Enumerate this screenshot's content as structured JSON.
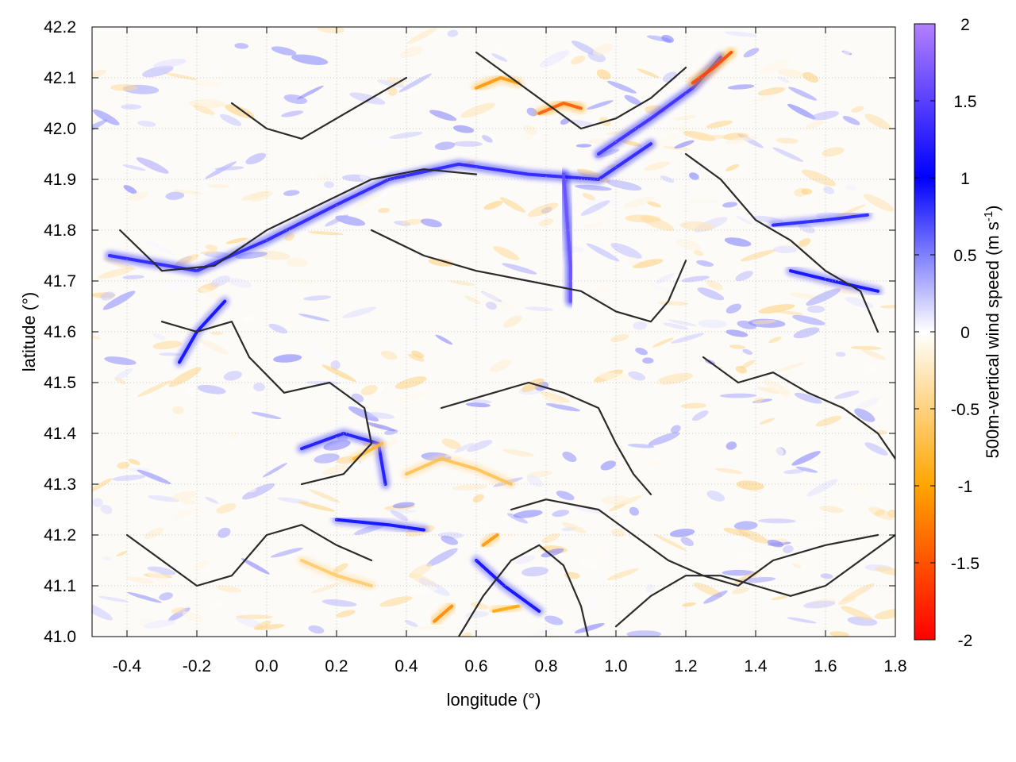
{
  "chart_data": {
    "type": "heatmap",
    "title": "",
    "xlabel": "longitude (°)",
    "ylabel": "latitude (°)",
    "xlim": [
      -0.5,
      1.8
    ],
    "ylim": [
      41.0,
      42.2
    ],
    "x_ticks": [
      "-0.4",
      "-0.2",
      "0.0",
      "0.2",
      "0.4",
      "0.6",
      "0.8",
      "1.0",
      "1.2",
      "1.4",
      "1.6",
      "1.8"
    ],
    "y_ticks": [
      "41.0",
      "41.1",
      "41.2",
      "41.3",
      "41.4",
      "41.5",
      "41.6",
      "41.7",
      "41.8",
      "41.9",
      "42.0",
      "42.1",
      "42.2"
    ],
    "grid": true,
    "colorbar": {
      "label_main": "500m-vertical wind speed (m s",
      "label_sup": "-1",
      "label_close": ")",
      "range": [
        -2,
        2
      ],
      "ticks": [
        "2",
        "1.5",
        "1",
        "0.5",
        "0",
        "-0.5",
        "-1",
        "-1.5",
        "-2"
      ],
      "colors": {
        "-2": "#ff0000",
        "-1": "#ffa500",
        "0": "#ffffff",
        "1": "#0000ff",
        "2": "#b380ff"
      }
    },
    "features": [
      {
        "kind": "updraft",
        "lon": [
          -0.45,
          -0.2,
          0.0,
          0.2,
          0.35,
          0.55,
          0.75,
          0.95,
          1.1
        ],
        "lat": [
          41.75,
          41.72,
          41.78,
          41.85,
          41.9,
          41.93,
          41.91,
          41.9,
          41.97
        ],
        "value": 1.2
      },
      {
        "kind": "updraft",
        "lon": [
          0.85,
          0.86,
          0.87,
          0.87
        ],
        "lat": [
          41.91,
          41.82,
          41.73,
          41.66
        ],
        "value": 1.6
      },
      {
        "kind": "updraft",
        "lon": [
          0.95,
          1.1,
          1.22,
          1.3
        ],
        "lat": [
          41.95,
          42.02,
          42.08,
          42.14
        ],
        "value": 1.3
      },
      {
        "kind": "updraft",
        "lon": [
          -0.25,
          -0.2,
          -0.12
        ],
        "lat": [
          41.54,
          41.6,
          41.66
        ],
        "value": 1.0
      },
      {
        "kind": "updraft",
        "lon": [
          0.1,
          0.22,
          0.32,
          0.34
        ],
        "lat": [
          41.37,
          41.4,
          41.38,
          41.3
        ],
        "value": 1.1
      },
      {
        "kind": "updraft",
        "lon": [
          0.2,
          0.35,
          0.45
        ],
        "lat": [
          41.23,
          41.22,
          41.21
        ],
        "value": 1.0
      },
      {
        "kind": "updraft",
        "lon": [
          1.5,
          1.62,
          1.75
        ],
        "lat": [
          41.72,
          41.7,
          41.68
        ],
        "value": 1.0
      },
      {
        "kind": "updraft",
        "lon": [
          1.45,
          1.6,
          1.72
        ],
        "lat": [
          41.81,
          41.82,
          41.83
        ],
        "value": 0.9
      },
      {
        "kind": "updraft",
        "lon": [
          0.6,
          0.68,
          0.78
        ],
        "lat": [
          41.15,
          41.1,
          41.05
        ],
        "value": 1.0
      },
      {
        "kind": "downdraft",
        "lon": [
          1.22,
          1.28,
          1.33
        ],
        "lat": [
          42.09,
          42.12,
          42.15
        ],
        "value": -1.6
      },
      {
        "kind": "downdraft",
        "lon": [
          0.78,
          0.85,
          0.9
        ],
        "lat": [
          42.03,
          42.05,
          42.04
        ],
        "value": -1.5
      },
      {
        "kind": "downdraft",
        "lon": [
          0.6,
          0.67,
          0.72
        ],
        "lat": [
          42.08,
          42.1,
          42.09
        ],
        "value": -1.1
      },
      {
        "kind": "downdraft",
        "lon": [
          0.48,
          0.53
        ],
        "lat": [
          41.03,
          41.06
        ],
        "value": -1.2
      },
      {
        "kind": "downdraft",
        "lon": [
          0.62,
          0.66
        ],
        "lat": [
          41.18,
          41.2
        ],
        "value": -1.1
      },
      {
        "kind": "downdraft",
        "lon": [
          0.4,
          0.5,
          0.6,
          0.7
        ],
        "lat": [
          41.32,
          41.35,
          41.33,
          41.3
        ],
        "value": -0.7
      },
      {
        "kind": "downdraft",
        "lon": [
          0.25,
          0.33
        ],
        "lat": [
          41.35,
          41.38
        ],
        "value": -0.8
      },
      {
        "kind": "downdraft",
        "lon": [
          0.65,
          0.72
        ],
        "lat": [
          41.05,
          41.06
        ],
        "value": -1.0
      },
      {
        "kind": "downdraft",
        "lon": [
          0.1,
          0.2,
          0.3
        ],
        "lat": [
          41.15,
          41.12,
          41.1
        ],
        "value": -0.6
      }
    ],
    "contours": [
      {
        "lon": [
          -0.42,
          -0.3,
          -0.15,
          0.0,
          0.15,
          0.3,
          0.45,
          0.6
        ],
        "lat": [
          41.8,
          41.72,
          41.73,
          41.8,
          41.85,
          41.9,
          41.92,
          41.91
        ]
      },
      {
        "lon": [
          -0.3,
          -0.2,
          -0.1,
          -0.05,
          0.05,
          0.18,
          0.28,
          0.3,
          0.22,
          0.1
        ],
        "lat": [
          41.62,
          41.6,
          41.62,
          41.55,
          41.48,
          41.5,
          41.45,
          41.38,
          41.32,
          41.3
        ]
      },
      {
        "lon": [
          0.3,
          0.45,
          0.6,
          0.75,
          0.9,
          1.0,
          1.1,
          1.15,
          1.2
        ],
        "lat": [
          41.8,
          41.75,
          41.72,
          41.7,
          41.68,
          41.64,
          41.62,
          41.66,
          41.74
        ]
      },
      {
        "lon": [
          0.5,
          0.6,
          0.75,
          0.85,
          0.95,
          1.0,
          1.05,
          1.1
        ],
        "lat": [
          41.45,
          41.47,
          41.5,
          41.48,
          41.45,
          41.38,
          41.32,
          41.28
        ]
      },
      {
        "lon": [
          0.7,
          0.8,
          0.95,
          1.05,
          1.15,
          1.25,
          1.35,
          1.45,
          1.6,
          1.75
        ],
        "lat": [
          41.25,
          41.27,
          41.25,
          41.2,
          41.15,
          41.12,
          41.1,
          41.15,
          41.18,
          41.2
        ]
      },
      {
        "lon": [
          -0.4,
          -0.3,
          -0.2,
          -0.1,
          0.0,
          0.1,
          0.2,
          0.3
        ],
        "lat": [
          41.2,
          41.15,
          41.1,
          41.12,
          41.2,
          41.22,
          41.18,
          41.15
        ]
      },
      {
        "lon": [
          1.2,
          1.3,
          1.4,
          1.5,
          1.6,
          1.7,
          1.75
        ],
        "lat": [
          41.95,
          41.9,
          41.82,
          41.78,
          41.72,
          41.68,
          41.6
        ]
      },
      {
        "lon": [
          1.25,
          1.35,
          1.45,
          1.55,
          1.65,
          1.75,
          1.8
        ],
        "lat": [
          41.55,
          41.5,
          41.52,
          41.48,
          41.45,
          41.4,
          41.35
        ]
      },
      {
        "lon": [
          0.55,
          0.62,
          0.7,
          0.78,
          0.85,
          0.9,
          0.92
        ],
        "lat": [
          41.0,
          41.08,
          41.15,
          41.18,
          41.14,
          41.06,
          41.0
        ]
      },
      {
        "lon": [
          1.0,
          1.1,
          1.2,
          1.3,
          1.4,
          1.5,
          1.6,
          1.7,
          1.8
        ],
        "lat": [
          41.02,
          41.08,
          41.12,
          41.12,
          41.1,
          41.08,
          41.1,
          41.15,
          41.2
        ]
      },
      {
        "lon": [
          0.6,
          0.7,
          0.8,
          0.9,
          1.0,
          1.1,
          1.2
        ],
        "lat": [
          42.15,
          42.1,
          42.05,
          42.0,
          42.02,
          42.06,
          42.12
        ]
      },
      {
        "lon": [
          -0.1,
          0.0,
          0.1,
          0.2,
          0.3,
          0.4
        ],
        "lat": [
          42.05,
          42.0,
          41.98,
          42.02,
          42.06,
          42.1
        ]
      }
    ]
  }
}
